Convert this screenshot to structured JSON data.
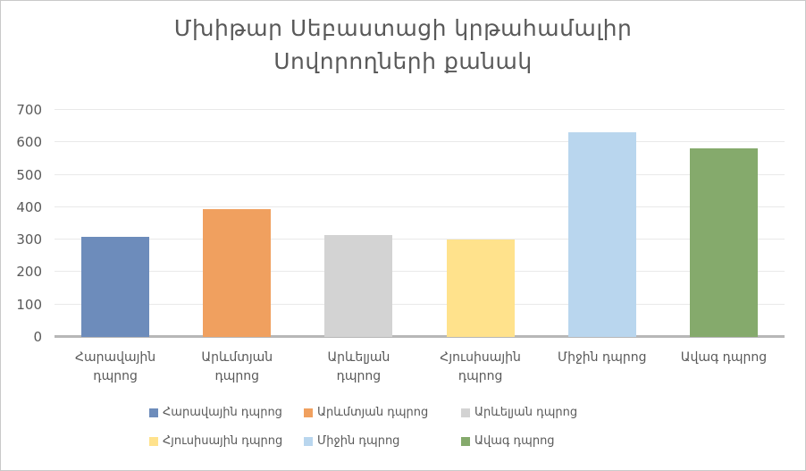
{
  "title": {
    "line1": "Մխիթար Սեբաստացի կրթահամալիր",
    "line2": "Սովորողների քանակ"
  },
  "chart_data": {
    "type": "bar",
    "title": "Մխիթար Սեբաստացի կրթահամալիր Սովորողների քանակ",
    "categories": [
      "Հարավային դպրոց",
      "Արևմտյան դպրոց",
      "Արևելյան դպրոց",
      "Հյուսիսային դպրոց",
      "Միջին դպրոց",
      "Ավագ դպրոց"
    ],
    "values": [
      310,
      395,
      313,
      301,
      630,
      581
    ],
    "bar_colors": [
      "#6d8cbb",
      "#f0a05f",
      "#d3d3d3",
      "#ffe28c",
      "#b9d6ee",
      "#85aa6c"
    ],
    "xlabel": "",
    "ylabel": "",
    "ylim": [
      0,
      700
    ],
    "yticks": [
      0,
      100,
      200,
      300,
      400,
      500,
      600,
      700
    ],
    "grid": true,
    "legend_position": "bottom",
    "legend_entries": [
      "Հարավային դպրոց",
      "Արևմտյան դպրոց",
      "Արևելյան դպրոց",
      "Հյուսիսային դպրոց",
      "Միջին դպրոց",
      "Ավագ դպրոց"
    ]
  },
  "colors": {
    "text": "#595959",
    "gridline": "#e9e9e9",
    "axis_line": "#b7b7b7",
    "frame_border": "#c9c9c9"
  }
}
